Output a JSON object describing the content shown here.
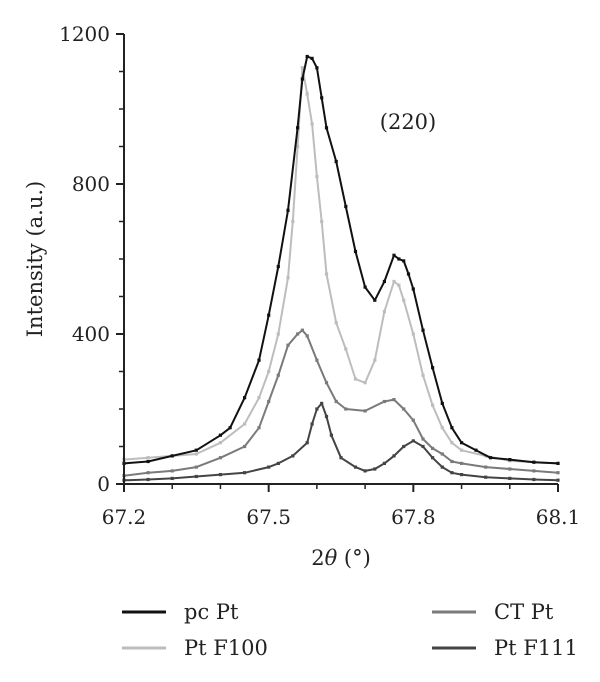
{
  "chart_data": {
    "type": "line",
    "title": "",
    "xlabel_prefix": "2",
    "xlabel_theta": "θ",
    "xlabel_suffix": " (°)",
    "ylabel": "Intensity (a.u.)",
    "xlim": [
      67.2,
      68.1
    ],
    "ylim": [
      0,
      1200
    ],
    "x_ticks": [
      "67.2",
      "67.5",
      "67.8",
      "68.1"
    ],
    "y_ticks": [
      "0",
      "400",
      "800",
      "1200"
    ],
    "annotation": "(220)",
    "grid": false,
    "legend_position": "bottom",
    "series": [
      {
        "name": "pc Pt",
        "color": "#111111",
        "points": [
          [
            67.2,
            55
          ],
          [
            67.25,
            60
          ],
          [
            67.3,
            75
          ],
          [
            67.35,
            90
          ],
          [
            67.4,
            130
          ],
          [
            67.42,
            150
          ],
          [
            67.45,
            230
          ],
          [
            67.48,
            330
          ],
          [
            67.5,
            450
          ],
          [
            67.52,
            580
          ],
          [
            67.54,
            730
          ],
          [
            67.56,
            950
          ],
          [
            67.57,
            1080
          ],
          [
            67.58,
            1140
          ],
          [
            67.59,
            1135
          ],
          [
            67.6,
            1110
          ],
          [
            67.61,
            1030
          ],
          [
            67.62,
            950
          ],
          [
            67.64,
            860
          ],
          [
            67.66,
            740
          ],
          [
            67.68,
            620
          ],
          [
            67.7,
            525
          ],
          [
            67.72,
            490
          ],
          [
            67.74,
            540
          ],
          [
            67.76,
            610
          ],
          [
            67.77,
            600
          ],
          [
            67.78,
            595
          ],
          [
            67.79,
            560
          ],
          [
            67.8,
            520
          ],
          [
            67.82,
            410
          ],
          [
            67.84,
            310
          ],
          [
            67.86,
            215
          ],
          [
            67.88,
            150
          ],
          [
            67.9,
            110
          ],
          [
            67.93,
            90
          ],
          [
            67.96,
            70
          ],
          [
            68.0,
            65
          ],
          [
            68.05,
            58
          ],
          [
            68.1,
            55
          ]
        ]
      },
      {
        "name": "Pt F100",
        "color": "#bdbdbd",
        "points": [
          [
            67.2,
            65
          ],
          [
            67.25,
            70
          ],
          [
            67.3,
            75
          ],
          [
            67.35,
            80
          ],
          [
            67.4,
            110
          ],
          [
            67.45,
            160
          ],
          [
            67.48,
            230
          ],
          [
            67.5,
            300
          ],
          [
            67.52,
            400
          ],
          [
            67.54,
            550
          ],
          [
            67.55,
            700
          ],
          [
            67.56,
            900
          ],
          [
            67.57,
            1110
          ],
          [
            67.58,
            1040
          ],
          [
            67.59,
            960
          ],
          [
            67.6,
            820
          ],
          [
            67.61,
            700
          ],
          [
            67.62,
            560
          ],
          [
            67.64,
            430
          ],
          [
            67.66,
            360
          ],
          [
            67.68,
            280
          ],
          [
            67.7,
            270
          ],
          [
            67.72,
            330
          ],
          [
            67.74,
            460
          ],
          [
            67.76,
            540
          ],
          [
            67.77,
            530
          ],
          [
            67.78,
            490
          ],
          [
            67.8,
            400
          ],
          [
            67.82,
            290
          ],
          [
            67.84,
            210
          ],
          [
            67.86,
            150
          ],
          [
            67.88,
            110
          ],
          [
            67.9,
            90
          ],
          [
            67.95,
            75
          ],
          [
            68.0,
            62
          ],
          [
            68.05,
            58
          ],
          [
            68.1,
            55
          ]
        ]
      },
      {
        "name": "CT Pt",
        "color": "#7a7a7a",
        "points": [
          [
            67.2,
            22
          ],
          [
            67.25,
            30
          ],
          [
            67.3,
            35
          ],
          [
            67.35,
            45
          ],
          [
            67.4,
            70
          ],
          [
            67.45,
            100
          ],
          [
            67.48,
            150
          ],
          [
            67.5,
            220
          ],
          [
            67.52,
            290
          ],
          [
            67.54,
            370
          ],
          [
            67.56,
            400
          ],
          [
            67.57,
            410
          ],
          [
            67.58,
            395
          ],
          [
            67.6,
            330
          ],
          [
            67.62,
            270
          ],
          [
            67.64,
            220
          ],
          [
            67.66,
            200
          ],
          [
            67.7,
            195
          ],
          [
            67.74,
            220
          ],
          [
            67.76,
            225
          ],
          [
            67.78,
            200
          ],
          [
            67.8,
            170
          ],
          [
            67.82,
            120
          ],
          [
            67.84,
            95
          ],
          [
            67.86,
            80
          ],
          [
            67.88,
            60
          ],
          [
            67.9,
            55
          ],
          [
            67.95,
            45
          ],
          [
            68.0,
            40
          ],
          [
            68.05,
            35
          ],
          [
            68.1,
            30
          ]
        ]
      },
      {
        "name": "Pt F111",
        "color": "#444444",
        "points": [
          [
            67.2,
            10
          ],
          [
            67.25,
            12
          ],
          [
            67.3,
            15
          ],
          [
            67.35,
            20
          ],
          [
            67.4,
            25
          ],
          [
            67.45,
            30
          ],
          [
            67.5,
            45
          ],
          [
            67.52,
            55
          ],
          [
            67.55,
            75
          ],
          [
            67.58,
            110
          ],
          [
            67.59,
            160
          ],
          [
            67.6,
            200
          ],
          [
            67.61,
            215
          ],
          [
            67.62,
            180
          ],
          [
            67.63,
            130
          ],
          [
            67.65,
            70
          ],
          [
            67.68,
            45
          ],
          [
            67.7,
            35
          ],
          [
            67.72,
            40
          ],
          [
            67.74,
            55
          ],
          [
            67.76,
            75
          ],
          [
            67.78,
            100
          ],
          [
            67.8,
            115
          ],
          [
            67.82,
            100
          ],
          [
            67.84,
            70
          ],
          [
            67.86,
            45
          ],
          [
            67.88,
            30
          ],
          [
            67.9,
            25
          ],
          [
            67.95,
            18
          ],
          [
            68.0,
            15
          ],
          [
            68.05,
            12
          ],
          [
            68.1,
            10
          ]
        ]
      }
    ]
  }
}
